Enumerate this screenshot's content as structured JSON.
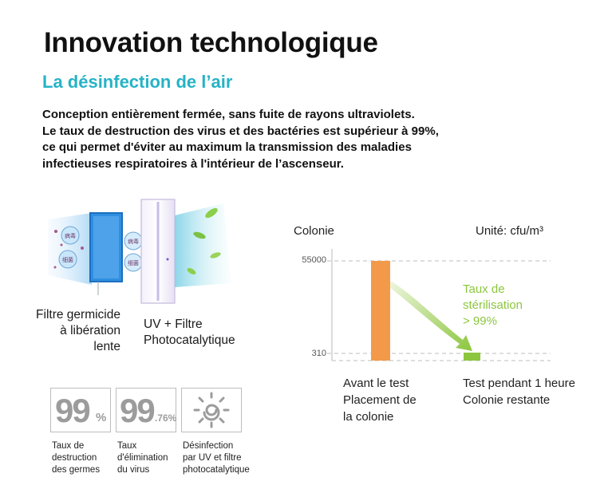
{
  "header": {
    "title": "Innovation technologique",
    "subtitle": "La désinfection de l’air"
  },
  "description": [
    "Conception entièrement fermée, sans fuite de rayons ultraviolets.",
    "Le taux de destruction des virus et des bactéries est supérieur à 99%,",
    "ce qui permet d'éviter au maximum la transmission des maladies",
    "infectieuses respiratoires à l'intérieur de l’ascenseur."
  ],
  "illustration": {
    "filter_label": [
      "Filtre germicide",
      "à libération",
      "lente"
    ],
    "uv_label": [
      "UV + Filtre",
      "Photocatalytique"
    ],
    "filter_marks": [
      "病毒",
      "细菌",
      "病毒",
      "细菌"
    ]
  },
  "chart_data": {
    "type": "bar",
    "ylabel": "Colonie",
    "unit": "Unité: cfu/m³",
    "ytick_values": [
      55000,
      310
    ],
    "ytick_labels": [
      "55000",
      "310"
    ],
    "categories": [
      [
        "Avant le test",
        "Placement de",
        "la colonie"
      ],
      [
        "Test pendant 1 heure",
        "Colonie restante"
      ]
    ],
    "values": [
      55000,
      310
    ],
    "colors": [
      "#f39a4a",
      "#8cc63e"
    ],
    "annotation": [
      "Taux de",
      "stérilisation",
      "> 99%"
    ]
  },
  "badges": [
    {
      "big": "99",
      "small": "%",
      "caption": [
        "Taux de",
        "destruction",
        "des germes"
      ]
    },
    {
      "big": "99",
      "small": ".76%",
      "caption": [
        "Taux",
        "d'élimination",
        "du virus"
      ]
    },
    {
      "icon": "sun-uv-icon",
      "caption": [
        "Désinfection",
        "par UV et filtre",
        "photocatalytique"
      ]
    }
  ]
}
